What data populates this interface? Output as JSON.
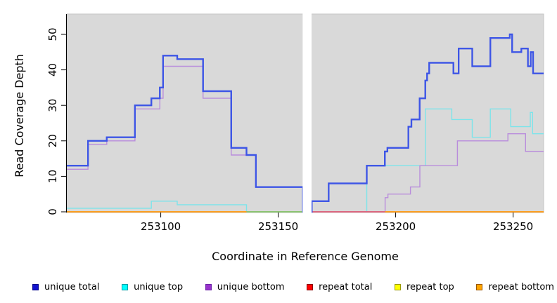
{
  "chart_data": {
    "type": "line",
    "subtype": "step-after",
    "title": "",
    "xlabel": "Coordinate in Reference Genome",
    "ylabel": "Read Coverage Depth",
    "x_ticks": [
      253100,
      253150,
      253200,
      253250
    ],
    "y_ticks": [
      0,
      10,
      20,
      30,
      40,
      50
    ],
    "xlim": [
      253060,
      253263
    ],
    "ylim": [
      0,
      56
    ],
    "plot_background": "#d9d9d9",
    "plot_border": "#c6c6c6",
    "gap": {
      "from": 253160.4,
      "to": 253164.2,
      "color": "#ffffff"
    },
    "series": [
      {
        "name": "unique top",
        "color": "#7ce4ea",
        "width": 1.4,
        "end": 253263,
        "points": [
          [
            253060,
            1
          ],
          [
            253096,
            3
          ],
          [
            253107,
            2
          ],
          [
            253136.5,
            0
          ],
          [
            253187.7,
            13
          ],
          [
            253212.6,
            29
          ],
          [
            253223.9,
            26
          ],
          [
            253232.6,
            21
          ],
          [
            253240.3,
            29
          ],
          [
            253249,
            24
          ],
          [
            253257.3,
            28
          ],
          [
            253258.3,
            22
          ]
        ]
      },
      {
        "name": "unique bottom",
        "color": "#b98ddc",
        "width": 1.4,
        "end": 253263,
        "points": [
          [
            253060,
            12
          ],
          [
            253069,
            19
          ],
          [
            253077,
            20
          ],
          [
            253089,
            29
          ],
          [
            253099.6,
            32
          ],
          [
            253101,
            41
          ],
          [
            253118,
            32
          ],
          [
            253130,
            16
          ],
          [
            253140.5,
            7
          ],
          [
            253160.5,
            0
          ],
          [
            253195.5,
            4
          ],
          [
            253196.7,
            5
          ],
          [
            253206.3,
            7
          ],
          [
            253210.3,
            13
          ],
          [
            253226.3,
            20
          ],
          [
            253247.8,
            22
          ],
          [
            253255.3,
            17
          ]
        ]
      },
      {
        "name": "repeat total",
        "color": "#dd2222",
        "width": 1.4,
        "end": 253263,
        "points": [
          [
            253060,
            0
          ]
        ]
      },
      {
        "name": "repeat top",
        "color": "#f5e81c",
        "width": 1.4,
        "end": 253263,
        "points": [
          [
            253060,
            0
          ]
        ]
      },
      {
        "name": "repeat bottom",
        "color": "#ff9b1a",
        "width": 1.8,
        "end": 253263,
        "points": [
          [
            253060,
            0
          ]
        ]
      },
      {
        "name": "unique total",
        "color": "#3d55e6",
        "width": 2.2,
        "end": 253263,
        "points": [
          [
            253060,
            13
          ],
          [
            253069,
            20
          ],
          [
            253077,
            21
          ],
          [
            253089,
            30
          ],
          [
            253096,
            32
          ],
          [
            253099.6,
            35
          ],
          [
            253101,
            44
          ],
          [
            253107,
            43
          ],
          [
            253118,
            34
          ],
          [
            253130,
            18
          ],
          [
            253136.5,
            16
          ],
          [
            253140.5,
            7
          ],
          [
            253160.5,
            0
          ],
          [
            253164.3,
            3
          ],
          [
            253171.5,
            8
          ],
          [
            253187.7,
            13
          ],
          [
            253195.4,
            17
          ],
          [
            253196.5,
            18
          ],
          [
            253205.4,
            24
          ],
          [
            253206.7,
            26
          ],
          [
            253210.2,
            32
          ],
          [
            253212.6,
            37
          ],
          [
            253213.4,
            39
          ],
          [
            253214.3,
            42
          ],
          [
            253224.6,
            39
          ],
          [
            253226.8,
            46
          ],
          [
            253232.6,
            41
          ],
          [
            253240.3,
            49
          ],
          [
            253248.6,
            50
          ],
          [
            253249.6,
            45
          ],
          [
            253253.5,
            46
          ],
          [
            253256.3,
            41
          ],
          [
            253257.5,
            45
          ],
          [
            253258.5,
            39
          ]
        ]
      }
    ],
    "zero_overlay_segments": [
      {
        "from": 253136.5,
        "to": 253160.5,
        "color": "#7cc87c",
        "width": 1.8
      },
      {
        "from": 253164.3,
        "to": 253195.5,
        "color": "#d95f8d",
        "width": 1.8
      }
    ],
    "legend": [
      {
        "label": "unique total",
        "fill": "#1313cf",
        "border": "#00008b"
      },
      {
        "label": "unique top",
        "fill": "#00ffff",
        "border": "#00a0a8"
      },
      {
        "label": "unique bottom",
        "fill": "#9932cc",
        "border": "#6b21a8"
      },
      {
        "label": "repeat total",
        "fill": "#ff0000",
        "border": "#8b0000"
      },
      {
        "label": "repeat top",
        "fill": "#ffff00",
        "border": "#9a9a00"
      },
      {
        "label": "repeat bottom",
        "fill": "#ffa500",
        "border": "#9c5700"
      }
    ]
  }
}
